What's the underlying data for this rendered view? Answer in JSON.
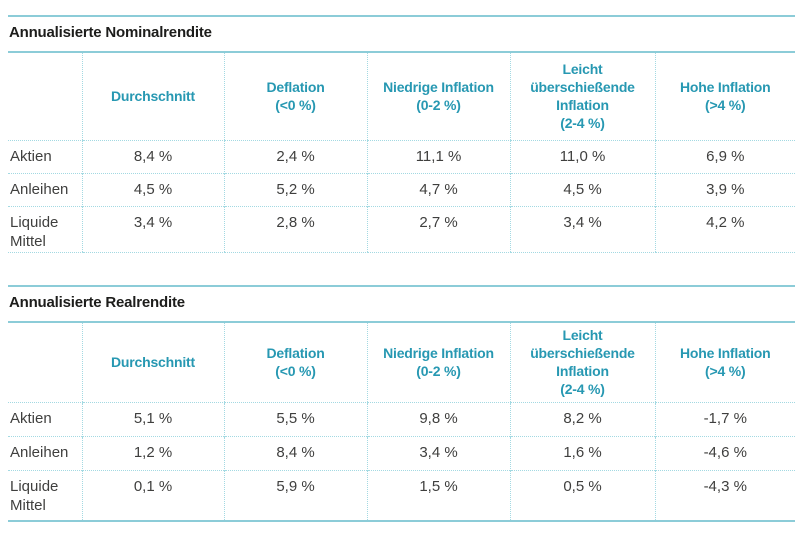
{
  "colors": {
    "teal_text": "#2798b2",
    "teal_line": "#8cccd8",
    "teal_dotted": "#a3d9e2",
    "title_text": "#1d1d1b",
    "body_text": "#3f3f3e",
    "negative_text": "#c4417f"
  },
  "tables": [
    {
      "title": "Annualisierte Nominalrendite",
      "columns": [
        "Durchschnitt",
        "Deflation\n(<0 %)",
        "Niedrige Inflation\n(0-2 %)",
        "Leicht\nüberschießende\nInflation\n(2-4 %)",
        "Hohe Inflation\n(>4 %)"
      ],
      "rows": [
        {
          "label": "Aktien",
          "values": [
            "8,4 %",
            "2,4 %",
            "11,1 %",
            "11,0 %",
            "6,9 %"
          ]
        },
        {
          "label": "Anleihen",
          "values": [
            "4,5 %",
            "5,2 %",
            "4,7 %",
            "4,5 %",
            "3,9 %"
          ]
        },
        {
          "label": "Liquide\nMittel",
          "values": [
            "3,4 %",
            "2,8 %",
            "2,7 %",
            "3,4 %",
            "4,2 %"
          ]
        }
      ]
    },
    {
      "title": "Annualisierte Realrendite",
      "columns": [
        "Durchschnitt",
        "Deflation\n(<0 %)",
        "Niedrige Inflation\n(0-2 %)",
        "Leicht\nüberschießende\nInflation\n(2-4 %)",
        "Hohe Inflation\n(>4 %)"
      ],
      "rows": [
        {
          "label": "Aktien",
          "values": [
            "5,1 %",
            "5,5 %",
            "9,8 %",
            "8,2 %",
            "-1,7 %"
          ]
        },
        {
          "label": "Anleihen",
          "values": [
            "1,2 %",
            "8,4 %",
            "3,4 %",
            "1,6 %",
            "-4,6 %"
          ]
        },
        {
          "label": "Liquide\nMittel",
          "values": [
            "0,1 %",
            "5,9 %",
            "1,5 %",
            "0,5 %",
            "-4,3 %"
          ]
        }
      ]
    }
  ]
}
